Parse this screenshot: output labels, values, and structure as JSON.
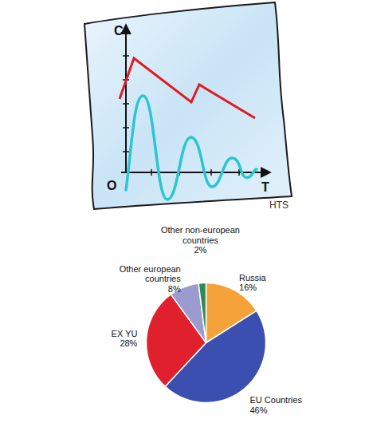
{
  "chart_data": {
    "type": "pie",
    "categories": [
      "Russia",
      "EU Countries",
      "EX YU",
      "Other european countries",
      "Other non-european countries"
    ],
    "values": [
      16,
      46,
      28,
      8,
      2
    ],
    "value_labels": [
      "16%",
      "46%",
      "28%",
      "8%",
      "2%"
    ],
    "colors": [
      "#f5a23a",
      "#3a4fb0",
      "#e0202c",
      "#9c9bd0",
      "#2e8b57"
    ],
    "data_labels": true
  },
  "icon": {
    "y_axis_label": "C",
    "origin_label": "O",
    "x_axis_label": "T"
  },
  "fragment_text": "HTS"
}
